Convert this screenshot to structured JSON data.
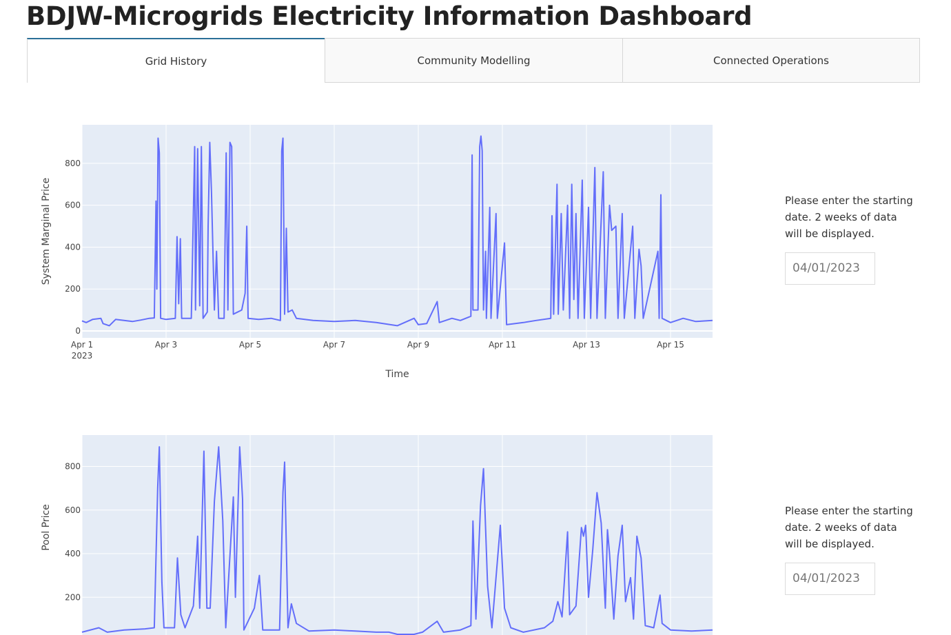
{
  "header": {
    "title": "BDJW-Microgrids Electricity Information Dashboard"
  },
  "tabs": [
    "Grid History",
    "Community Modelling",
    "Connected Operations"
  ],
  "panels": [
    {
      "prompt": "Please enter the starting date. 2 weeks of data will be displayed.",
      "date_input": "04/01/2023"
    },
    {
      "prompt": "Please enter the starting date. 2 weeks of data will be displayed.",
      "date_input": "04/01/2023"
    }
  ],
  "chart_data": [
    {
      "type": "line",
      "xlabel": "Time",
      "ylabel": "System Marginal Price",
      "color": "#636efa",
      "grid": true,
      "x_year": "2023",
      "xlim": [
        1,
        16
      ],
      "ylim": [
        -33,
        984
      ],
      "xticks": [
        {
          "value": 1,
          "label": "Apr 1"
        },
        {
          "value": 3,
          "label": "Apr 3"
        },
        {
          "value": 5,
          "label": "Apr 5"
        },
        {
          "value": 7,
          "label": "Apr 7"
        },
        {
          "value": 9,
          "label": "Apr 9"
        },
        {
          "value": 11,
          "label": "Apr 11"
        },
        {
          "value": 13,
          "label": "Apr 13"
        },
        {
          "value": 15,
          "label": "Apr 15"
        }
      ],
      "yticks": [
        0,
        200,
        400,
        600,
        800
      ],
      "x": [
        1.0,
        1.1,
        1.25,
        1.45,
        1.5,
        1.65,
        1.8,
        2.0,
        2.2,
        2.4,
        2.6,
        2.72,
        2.76,
        2.78,
        2.81,
        2.84,
        2.87,
        3.0,
        3.22,
        3.26,
        3.3,
        3.34,
        3.37,
        3.6,
        3.68,
        3.7,
        3.75,
        3.8,
        3.84,
        3.88,
        3.98,
        4.0,
        4.04,
        4.08,
        4.15,
        4.2,
        4.25,
        4.38,
        4.43,
        4.47,
        4.52,
        4.56,
        4.6,
        4.8,
        4.88,
        4.92,
        4.95,
        5.2,
        5.5,
        5.72,
        5.75,
        5.78,
        5.82,
        5.86,
        5.9,
        6.0,
        6.1,
        6.5,
        7.0,
        7.5,
        8.0,
        8.5,
        8.9,
        9.0,
        9.2,
        9.45,
        9.5,
        9.8,
        10.0,
        10.25,
        10.28,
        10.3,
        10.42,
        10.46,
        10.49,
        10.52,
        10.55,
        10.6,
        10.62,
        10.7,
        10.73,
        10.85,
        10.88,
        11.05,
        11.1,
        11.5,
        11.8,
        12.15,
        12.18,
        12.22,
        12.3,
        12.33,
        12.4,
        12.45,
        12.55,
        12.6,
        12.65,
        12.7,
        12.75,
        12.8,
        12.9,
        12.95,
        13.05,
        13.1,
        13.2,
        13.25,
        13.4,
        13.45,
        13.55,
        13.6,
        13.7,
        13.75,
        13.85,
        13.9,
        14.1,
        14.15,
        14.25,
        14.3,
        14.35,
        14.7,
        14.73,
        14.77,
        14.8,
        15.0,
        15.3,
        15.6,
        16.0
      ],
      "values": [
        48,
        40,
        55,
        60,
        35,
        25,
        55,
        50,
        45,
        52,
        60,
        62,
        620,
        200,
        920,
        850,
        60,
        55,
        60,
        450,
        130,
        440,
        60,
        60,
        880,
        100,
        870,
        120,
        880,
        60,
        90,
        500,
        900,
        660,
        100,
        380,
        60,
        60,
        850,
        100,
        900,
        880,
        80,
        100,
        180,
        500,
        60,
        55,
        60,
        50,
        860,
        920,
        80,
        490,
        90,
        100,
        60,
        50,
        45,
        50,
        40,
        25,
        60,
        30,
        35,
        140,
        40,
        60,
        50,
        70,
        840,
        100,
        100,
        880,
        930,
        860,
        100,
        380,
        60,
        590,
        60,
        560,
        60,
        420,
        30,
        40,
        50,
        60,
        550,
        80,
        700,
        80,
        560,
        100,
        600,
        60,
        700,
        150,
        560,
        60,
        720,
        60,
        590,
        60,
        780,
        60,
        760,
        60,
        600,
        480,
        500,
        60,
        560,
        60,
        500,
        60,
        390,
        310,
        60,
        380,
        60,
        650,
        60,
        40,
        60,
        45,
        50
      ]
    },
    {
      "type": "line",
      "ylabel": "Pool Price",
      "color": "#636efa",
      "grid": true,
      "xlim": [
        1,
        16
      ],
      "ylim": [
        -30,
        944
      ],
      "xticks": [
        1,
        3,
        5,
        7,
        9,
        11,
        13,
        15
      ],
      "yticks": [
        200,
        400,
        600,
        800
      ],
      "x": [
        1.0,
        1.4,
        1.6,
        2.0,
        2.5,
        2.72,
        2.8,
        2.84,
        2.9,
        2.95,
        3.2,
        3.27,
        3.35,
        3.45,
        3.65,
        3.75,
        3.8,
        3.9,
        3.97,
        4.05,
        4.15,
        4.25,
        4.35,
        4.42,
        4.6,
        4.65,
        4.75,
        4.82,
        4.85,
        5.1,
        5.22,
        5.3,
        5.7,
        5.78,
        5.82,
        5.9,
        5.98,
        6.1,
        6.4,
        7.0,
        7.5,
        8.0,
        8.3,
        8.5,
        8.9,
        9.1,
        9.45,
        9.6,
        10.0,
        10.25,
        10.3,
        10.37,
        10.48,
        10.55,
        10.65,
        10.75,
        10.95,
        11.05,
        11.2,
        11.5,
        12.0,
        12.2,
        12.32,
        12.42,
        12.55,
        12.6,
        12.75,
        12.88,
        12.93,
        12.98,
        13.05,
        13.15,
        13.25,
        13.35,
        13.45,
        13.5,
        13.55,
        13.65,
        13.75,
        13.85,
        13.93,
        14.05,
        14.12,
        14.2,
        14.3,
        14.4,
        14.6,
        14.75,
        14.8,
        15.0,
        15.5,
        16.0
      ],
      "values": [
        40,
        60,
        40,
        50,
        55,
        60,
        700,
        890,
        270,
        60,
        60,
        380,
        120,
        60,
        160,
        480,
        150,
        870,
        150,
        150,
        640,
        890,
        550,
        60,
        660,
        200,
        890,
        650,
        50,
        150,
        300,
        50,
        50,
        680,
        820,
        60,
        170,
        80,
        45,
        50,
        45,
        40,
        40,
        30,
        30,
        40,
        90,
        40,
        50,
        70,
        550,
        100,
        620,
        790,
        250,
        60,
        530,
        150,
        60,
        40,
        60,
        90,
        180,
        110,
        500,
        120,
        160,
        520,
        480,
        530,
        200,
        420,
        680,
        540,
        150,
        510,
        400,
        100,
        390,
        530,
        180,
        290,
        100,
        480,
        380,
        70,
        60,
        210,
        80,
        50,
        45,
        50
      ]
    }
  ]
}
